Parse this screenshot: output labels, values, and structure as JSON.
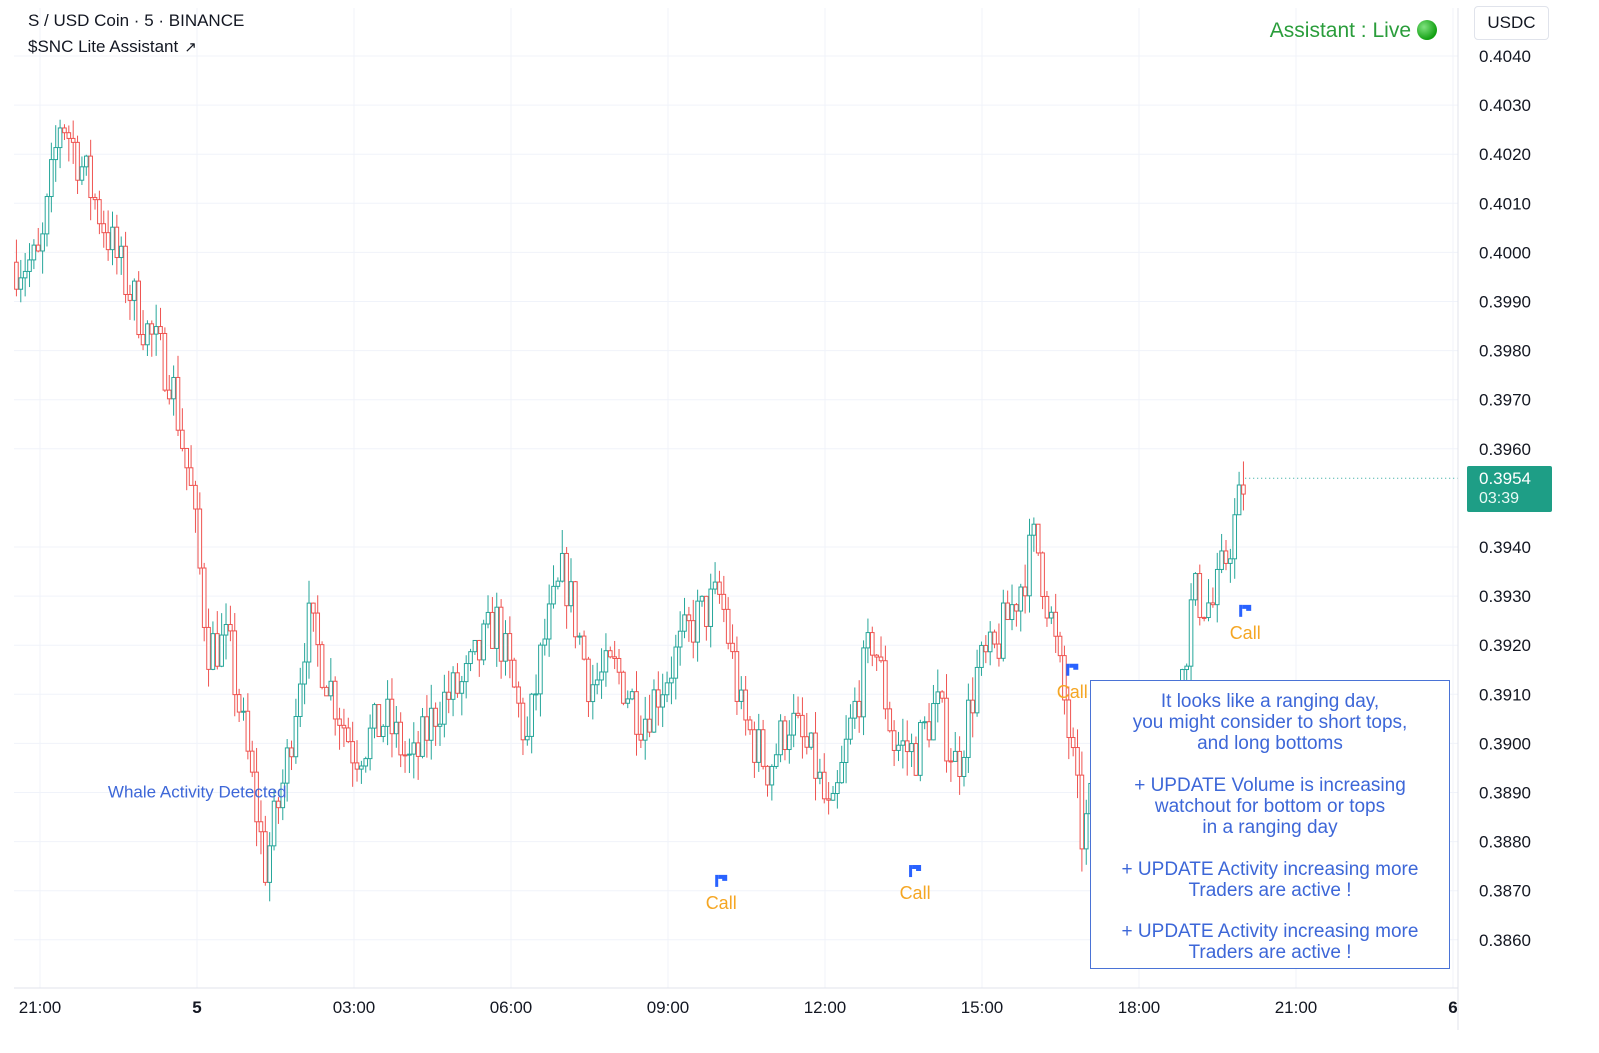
{
  "header": {
    "symbol_line": "S / USD Coin · 5 · BINANCE",
    "indicator_line": "$SNC Lite Assistant",
    "indicator_link_icon": "external-link-icon"
  },
  "status": {
    "label": "Assistant : Live",
    "dot_color": "#12a012"
  },
  "currency_button": "USDC",
  "last_price": {
    "value": "0.3954",
    "countdown": "03:39",
    "color": "#1e9e86"
  },
  "colors": {
    "up": "#26a69a",
    "down": "#ef5350",
    "call": "#f5a623",
    "flag": "#2962ff",
    "annotation": "#3d67d8"
  },
  "info_box": {
    "line1": "It looks like a ranging day,\nyou might consider to short tops,\nand long bottoms",
    "line2": "+ UPDATE Volume is increasing\nwatchout for bottom or tops\nin a ranging day",
    "line3": "+ UPDATE Activity increasing more\nTraders are active !",
    "line4": "+ UPDATE Activity increasing more\nTraders are active !"
  },
  "chart_data": {
    "type": "candlestick",
    "title": "S / USD Coin · 5 · BINANCE",
    "y_range": [
      0.385,
      0.4045
    ],
    "y_ticks": [
      "0.4040",
      "0.4030",
      "0.4020",
      "0.4010",
      "0.4000",
      "0.3990",
      "0.3980",
      "0.3970",
      "0.3960",
      "0.3940",
      "0.3930",
      "0.3920",
      "0.3910",
      "0.3900",
      "0.3890",
      "0.3880",
      "0.3870",
      "0.3860"
    ],
    "x_ticks": [
      "21:00",
      "5",
      "03:00",
      "06:00",
      "09:00",
      "12:00",
      "15:00",
      "18:00",
      "21:00",
      "6"
    ],
    "x_range_hours": [
      -0.5,
      27
    ],
    "grid": true,
    "anchors": [
      [
        0.0,
        0.3998
      ],
      [
        0.4,
        0.4028
      ],
      [
        1.0,
        0.4012
      ],
      [
        1.6,
        0.3995
      ],
      [
        2.0,
        0.3985
      ],
      [
        2.5,
        0.3975
      ],
      [
        2.9,
        0.395
      ],
      [
        3.2,
        0.392
      ],
      [
        3.6,
        0.392
      ],
      [
        4.0,
        0.3895
      ],
      [
        4.3,
        0.3875
      ],
      [
        4.7,
        0.3895
      ],
      [
        5.1,
        0.3925
      ],
      [
        5.6,
        0.391
      ],
      [
        6.0,
        0.3898
      ],
      [
        6.6,
        0.3905
      ],
      [
        7.1,
        0.3895
      ],
      [
        7.6,
        0.3908
      ],
      [
        8.1,
        0.3912
      ],
      [
        8.7,
        0.3925
      ],
      [
        9.3,
        0.39
      ],
      [
        9.6,
        0.392
      ],
      [
        10.0,
        0.3935
      ],
      [
        10.5,
        0.3912
      ],
      [
        11.0,
        0.3915
      ],
      [
        11.5,
        0.3905
      ],
      [
        12.0,
        0.3915
      ],
      [
        12.5,
        0.3925
      ],
      [
        13.0,
        0.393
      ],
      [
        13.4,
        0.3905
      ],
      [
        13.9,
        0.3895
      ],
      [
        14.3,
        0.3905
      ],
      [
        14.8,
        0.3895
      ],
      [
        15.1,
        0.3883
      ],
      [
        15.5,
        0.3905
      ],
      [
        15.9,
        0.3922
      ],
      [
        16.3,
        0.39
      ],
      [
        16.7,
        0.3898
      ],
      [
        17.1,
        0.3908
      ],
      [
        17.5,
        0.3895
      ],
      [
        17.9,
        0.3915
      ],
      [
        18.2,
        0.3918
      ],
      [
        18.7,
        0.3932
      ],
      [
        19.0,
        0.3942
      ],
      [
        19.3,
        0.3925
      ],
      [
        19.6,
        0.3905
      ],
      [
        19.9,
        0.388
      ],
      [
        20.2,
        0.3895
      ],
      [
        20.6,
        0.3885
      ],
      [
        21.0,
        0.3892
      ],
      [
        21.4,
        0.3885
      ],
      [
        21.7,
        0.3905
      ],
      [
        22.0,
        0.393
      ],
      [
        22.4,
        0.3928
      ],
      [
        22.8,
        0.3945
      ],
      [
        23.0,
        0.3954
      ]
    ],
    "last_close": 0.3954,
    "annotations": [
      {
        "text": "Whale Activity Detected",
        "hour": 3.0,
        "price": 0.3889,
        "color": "#3d67d8"
      }
    ],
    "signals": [
      {
        "label": "Call",
        "hour": 13.0,
        "price": 0.3872
      },
      {
        "label": "Call",
        "hour": 19.7,
        "price": 0.3915
      },
      {
        "label": "Call",
        "hour": 16.7,
        "price": 0.3874
      },
      {
        "label": "Call",
        "hour": 23.0,
        "price": 0.3927
      }
    ]
  }
}
